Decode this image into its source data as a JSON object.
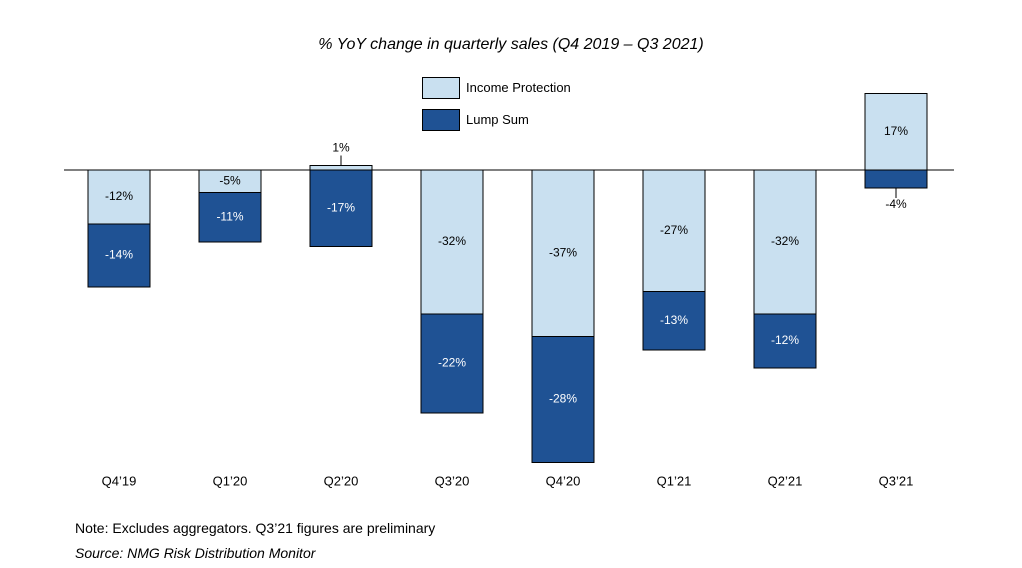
{
  "chart_data": {
    "type": "bar",
    "stacked": true,
    "title": "% YoY change in quarterly sales (Q4 2019 – Q3 2021)",
    "categories": [
      "Q4’19",
      "Q1’20",
      "Q2’20",
      "Q3’20",
      "Q4’20",
      "Q1’21",
      "Q2’21",
      "Q3’21"
    ],
    "series": [
      {
        "name": "Income Protection",
        "color": "#c9e0f0",
        "values": [
          -12,
          -5,
          1,
          -32,
          -37,
          -27,
          -32,
          17
        ],
        "labels": [
          "-12%",
          "-5%",
          "1%",
          "-32%",
          "-37%",
          "-27%",
          "-32%",
          "17%"
        ]
      },
      {
        "name": "Lump Sum",
        "color": "#1f5294",
        "values": [
          -14,
          -11,
          -17,
          -22,
          -28,
          -13,
          -12,
          -4
        ],
        "labels": [
          "-14%",
          "-11%",
          "-17%",
          "-22%",
          "-28%",
          "-13%",
          "-12%",
          "-4%"
        ]
      }
    ],
    "legend_position": "top-center",
    "grid": false
  },
  "note": "Note:  Excludes aggregators. Q3’21 figures are preliminary",
  "source": "Source: NMG Risk Distribution Monitor"
}
